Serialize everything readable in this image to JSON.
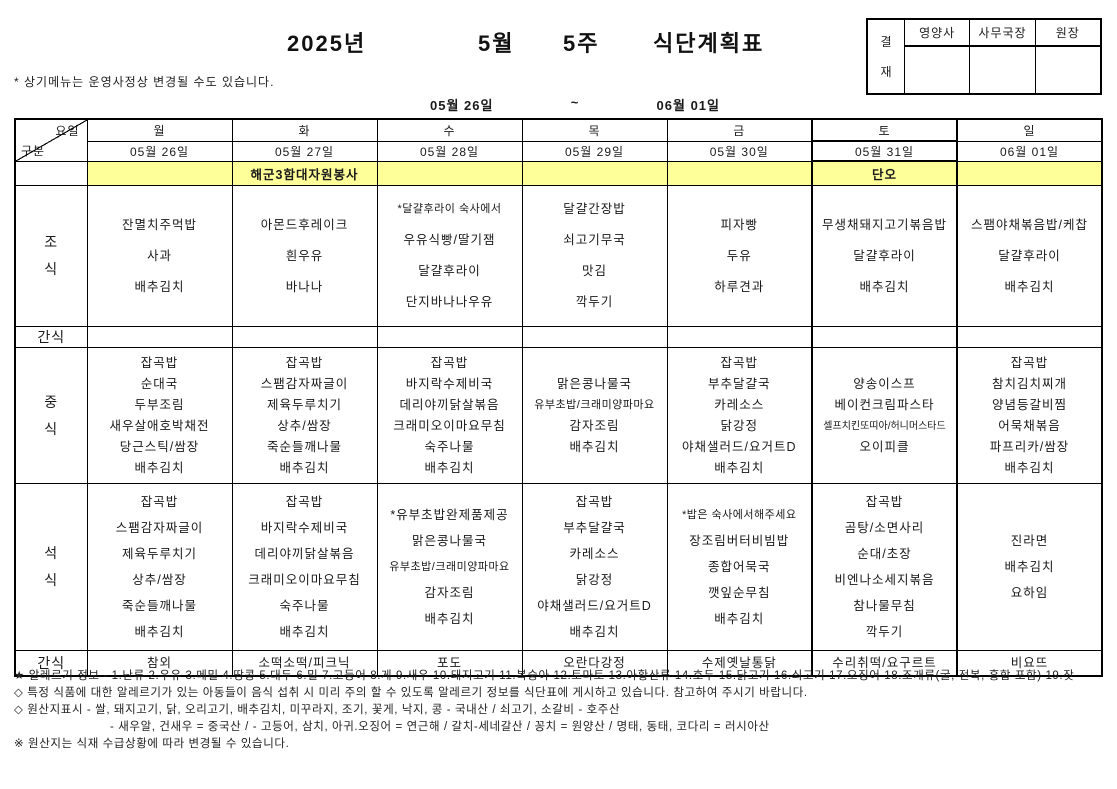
{
  "title": {
    "year": "2025년",
    "month": "5월",
    "week": "5주",
    "label": "식단계획표"
  },
  "note": "* 상기메뉴는 운영사정상 변경될 수도 있습니다.",
  "date_range": {
    "start": "05월 26일",
    "tilde": "~",
    "end": "06월 01일"
  },
  "approval": {
    "stamp_top": "결",
    "stamp_bottom": "재",
    "columns": [
      "영양사",
      "사무국장",
      "원장"
    ]
  },
  "highlight_color": "#FFFF99",
  "table": {
    "corner": {
      "top": "요일",
      "bottom": "구분"
    },
    "days": [
      {
        "name": "월",
        "date": "05월 26일"
      },
      {
        "name": "화",
        "date": "05월 27일"
      },
      {
        "name": "수",
        "date": "05월 28일"
      },
      {
        "name": "목",
        "date": "05월 29일"
      },
      {
        "name": "금",
        "date": "05월 30일"
      },
      {
        "name": "토",
        "date": "05월 31일"
      },
      {
        "name": "일",
        "date": "06월 01일"
      }
    ],
    "event_row": [
      "",
      "해군3함대자원봉사",
      "",
      "",
      "",
      "단오",
      ""
    ],
    "meals": [
      {
        "label": "조식",
        "items": [
          [
            "잔멸치주먹밥",
            "사과",
            "배추김치"
          ],
          [
            "아몬드후레이크",
            "흰우유",
            "바나나"
          ],
          [
            "*달걀후라이 숙사에서",
            "우유식빵/딸기잼",
            "달걀후라이",
            "단지바나나우유"
          ],
          [
            "달걀간장밥",
            "쇠고기무국",
            "맛김",
            "깍두기"
          ],
          [
            "피자빵",
            "두유",
            "하루견과"
          ],
          [
            "무생채돼지고기볶음밥",
            "달걀후라이",
            "배추김치"
          ],
          [
            "스팸야채볶음밥/케찹",
            "달걀후라이",
            "배추김치"
          ]
        ]
      },
      {
        "label": "간식",
        "items": [
          [],
          [],
          [],
          [],
          [],
          [],
          []
        ]
      },
      {
        "label": "중식",
        "items": [
          [
            "잡곡밥",
            "순대국",
            "두부조림",
            "새우살애호박채전",
            "당근스틱/쌈장",
            "배추김치"
          ],
          [
            "잡곡밥",
            "스팸감자짜글이",
            "제육두루치기",
            "상추/쌈장",
            "죽순들깨나물",
            "배추김치"
          ],
          [
            "잡곡밥",
            "바지락수제비국",
            "데리야끼닭살볶음",
            "크래미오이마요무침",
            "숙주나물",
            "배추김치"
          ],
          [
            "맑은콩나물국",
            "유부초밥/크래미양파마요",
            "감자조림",
            "배추김치"
          ],
          [
            "잡곡밥",
            "부추달걀국",
            "카레소스",
            "닭강정",
            "야채샐러드/요거트D",
            "배추김치"
          ],
          [
            "양송이스프",
            "베이컨크림파스타",
            "셀프치킨또띠아/허니머스타드",
            "오이피클"
          ],
          [
            "잡곡밥",
            "참치김치찌개",
            "양념등갈비찜",
            "어묵채볶음",
            "파프리카/쌈장",
            "배추김치"
          ]
        ]
      },
      {
        "label": "석식",
        "items": [
          [
            "잡곡밥",
            "스팸감자짜글이",
            "제육두루치기",
            "상추/쌈장",
            "죽순들깨나물",
            "배추김치"
          ],
          [
            "잡곡밥",
            "바지락수제비국",
            "데리야끼닭살볶음",
            "크래미오이마요무침",
            "숙주나물",
            "배추김치"
          ],
          [
            "*유부초밥완제품제공",
            "맑은콩나물국",
            "유부초밥/크래미양파마요",
            "감자조림",
            "배추김치"
          ],
          [
            "잡곡밥",
            "부추달걀국",
            "카레소스",
            "닭강정",
            "야채샐러드/요거트D",
            "배추김치"
          ],
          [
            "*밥은 숙사에서해주세요",
            "장조림버터비빔밥",
            "종합어묵국",
            "깻잎순무침",
            "배추김치"
          ],
          [
            "잡곡밥",
            "곰탕/소면사리",
            "순대/초장",
            "비엔나소세지볶음",
            "참나물무침",
            "깍두기"
          ],
          [
            "진라면",
            "배추김치",
            "요하임"
          ]
        ]
      },
      {
        "label": "간식",
        "items": [
          [
            "참외"
          ],
          [
            "소떡소떡/피크닉"
          ],
          [
            "포도"
          ],
          [
            "오란다강정"
          ],
          [
            "수제옛날통닭"
          ],
          [
            "수리취떡/요구르트"
          ],
          [
            "비요뜨"
          ]
        ]
      }
    ]
  },
  "footer": {
    "lines": [
      "★  알레르기 정보 -   1.난류 2.우유 3.메밀 4.땅콩 5.대두 6.밀 7.고등어 8.게 9.새우 10.돼지고기 11.복숭아 12.토마토 13.아황산류 14.호두 15.닭고기 16.쇠고기 17.오징어 18.조개류(굴, 전복, 홍합 포함) 19.잣",
      "◇  특정 식품에 대한 알레르기가 있는 아동들이 음식 섭취 시 미리 주의 할 수 있도록 알레르기 정보를 식단표에 게시하고 있습니다. 참고하여 주시기 바랍니다.",
      "◇  원산지표시 - 쌀, 돼지고기, 닭, 오리고기, 배추김치, 미꾸라지, 조기, 꽃게, 낙지, 콩 - 국내산  /  쇠고기, 소갈비 - 호주산",
      "- 새우알, 건새우 = 중국산  /  - 고등어, 삼치, 아귀.오징어 = 연근해 / 갈치-세네갈산  /  꽁치 = 원양산  /  명태, 동태, 코다리 = 러시아산",
      "※  원산지는 식재 수급상황에 따라 변경될 수 있습니다."
    ]
  }
}
